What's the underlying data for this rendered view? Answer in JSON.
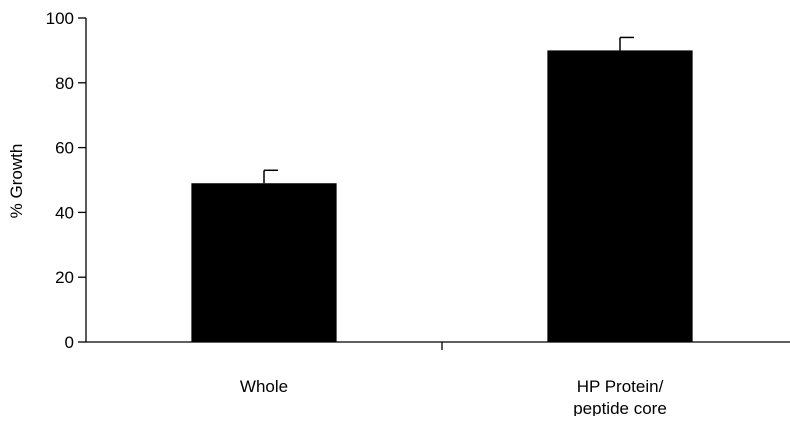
{
  "chart_data": {
    "type": "bar",
    "categories": [
      [
        "Whole"
      ],
      [
        "HP Protein/",
        "peptide core"
      ]
    ],
    "values": [
      49,
      90
    ],
    "errors": [
      4,
      4
    ],
    "ylabel": "% Growth",
    "xlabel": "",
    "ylim": [
      0,
      100
    ],
    "yticks": [
      0,
      20,
      40,
      60,
      80,
      100
    ],
    "grid": false,
    "bar_color": "#000000"
  }
}
